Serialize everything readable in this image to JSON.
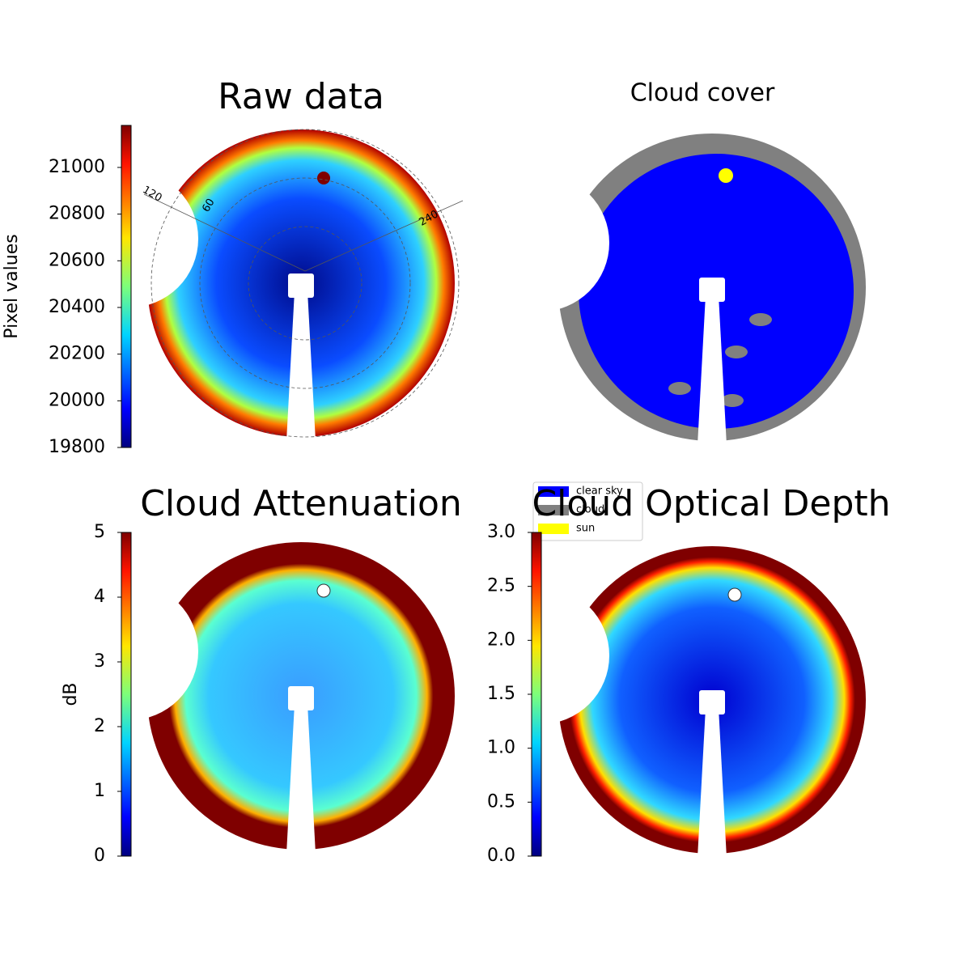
{
  "chart_data": [
    {
      "type": "image",
      "title": "Raw data",
      "colormap": "jet",
      "colorbar": {
        "label": "Pixel values",
        "ylim": [
          19800,
          21180
        ],
        "yticks": [
          19800,
          20000,
          20200,
          20400,
          20600,
          20800,
          21000
        ]
      },
      "polar_labels": [
        "120",
        "60",
        "240"
      ]
    },
    {
      "type": "image",
      "title": "Cloud cover",
      "series": [
        {
          "name": "clear sky",
          "color": "#0000ff"
        },
        {
          "name": "cloud",
          "color": "#808080"
        },
        {
          "name": "sun",
          "color": "#ffff00"
        }
      ]
    },
    {
      "type": "image",
      "title": "Cloud Attenuation",
      "colormap": "jet",
      "colorbar": {
        "label": "dB",
        "ylim": [
          0,
          5
        ],
        "yticks": [
          0,
          1,
          2,
          3,
          4,
          5
        ]
      }
    },
    {
      "type": "image",
      "title": "Cloud Optical Depth",
      "colormap": "jet",
      "colorbar": {
        "ylim": [
          0,
          3
        ],
        "yticks": [
          {
            "value": 0,
            "label": "0.0"
          },
          {
            "value": 0.5,
            "label": "0.5"
          },
          {
            "value": 1,
            "label": "1.0"
          },
          {
            "value": 1.5,
            "label": "1.5"
          },
          {
            "value": 2,
            "label": "2.0"
          },
          {
            "value": 2.5,
            "label": "2.5"
          },
          {
            "value": 3,
            "label": "3.0"
          }
        ]
      }
    }
  ]
}
